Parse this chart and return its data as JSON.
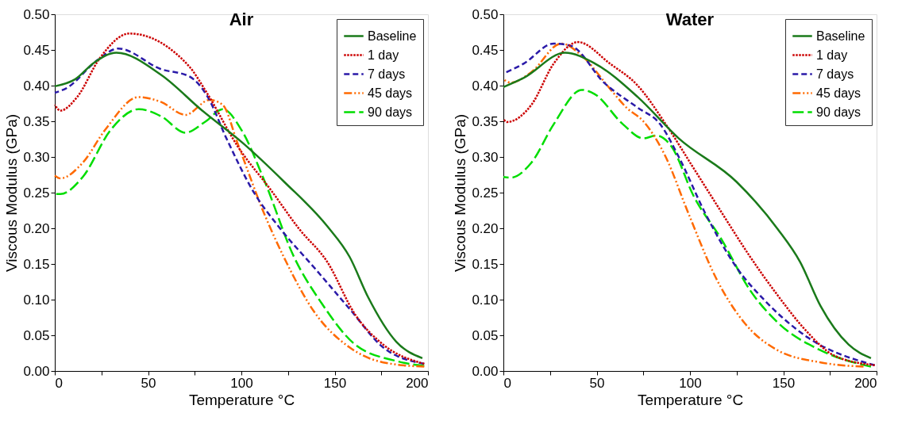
{
  "chart_data": [
    {
      "type": "line",
      "title": "Air",
      "xlabel": "Temperature °C",
      "ylabel": "Viscous Modulus (GPa)",
      "xlim": [
        0,
        200
      ],
      "ylim": [
        0,
        0.5
      ],
      "xticks": [
        0,
        {
          "value": 25,
          "label": null
        },
        50,
        {
          "value": 75,
          "label": null
        },
        100,
        {
          "value": 125,
          "label": null
        },
        150,
        {
          "value": 175,
          "label": null
        },
        200
      ],
      "yticks": [
        {
          "value": 0,
          "label": "0.00"
        },
        {
          "value": 0.05,
          "label": "0.05"
        },
        {
          "value": 0.1,
          "label": "0.10"
        },
        {
          "value": 0.15,
          "label": "0.15"
        },
        {
          "value": 0.2,
          "label": "0.20"
        },
        {
          "value": 0.25,
          "label": "0.25"
        },
        {
          "value": 0.3,
          "label": "0.30"
        },
        {
          "value": 0.35,
          "label": "0.35"
        },
        {
          "value": 0.4,
          "label": "0.40"
        },
        {
          "value": 0.45,
          "label": "0.45"
        },
        {
          "value": 0.5,
          "label": "0.50"
        }
      ],
      "grid": false,
      "legend": "top right",
      "marker": "none",
      "series": [
        {
          "name": "Baseline",
          "color": "#1a7a1a",
          "line_style": "solid",
          "x": [
            0,
            11,
            21,
            33,
            57,
            79,
            101,
            123,
            146,
            158,
            168,
            183,
            197
          ],
          "values": [
            0.399,
            0.409,
            0.432,
            0.446,
            0.415,
            0.365,
            0.319,
            0.265,
            0.203,
            0.16,
            0.103,
            0.041,
            0.018
          ]
        },
        {
          "name": "1 day",
          "color": "#cc0000",
          "line_style": "dotted",
          "x": [
            0,
            3,
            12,
            24,
            40,
            72,
            81,
            98,
            116,
            131,
            146,
            161,
            176,
            198
          ],
          "values": [
            0.373,
            0.365,
            0.384,
            0.438,
            0.473,
            0.427,
            0.392,
            0.315,
            0.253,
            0.199,
            0.153,
            0.079,
            0.037,
            0.01
          ]
        },
        {
          "name": "7 days",
          "color": "#2a1aa8",
          "line_style": "dashed",
          "x": [
            0,
            6,
            23,
            34,
            57,
            72,
            82,
            92,
            107,
            121,
            139,
            158,
            176,
            198
          ],
          "values": [
            0.39,
            0.396,
            0.436,
            0.452,
            0.423,
            0.413,
            0.384,
            0.326,
            0.249,
            0.199,
            0.145,
            0.087,
            0.033,
            0.01
          ]
        },
        {
          "name": "45 days",
          "color": "#ff6a00",
          "line_style": "dashdot",
          "x": [
            0,
            3,
            15,
            27,
            45,
            57,
            70,
            83,
            90,
            98,
            112,
            124,
            139,
            158,
            176,
            198
          ],
          "values": [
            0.274,
            0.27,
            0.292,
            0.338,
            0.384,
            0.377,
            0.359,
            0.38,
            0.373,
            0.319,
            0.222,
            0.153,
            0.083,
            0.033,
            0.012,
            0.006
          ]
        },
        {
          "name": "90 days",
          "color": "#00dd00",
          "line_style": "longdash",
          "x": [
            0,
            3,
            15,
            30,
            45,
            57,
            70,
            81,
            90,
            100,
            112,
            128,
            143,
            161,
            183,
            198
          ],
          "values": [
            0.248,
            0.248,
            0.272,
            0.338,
            0.367,
            0.357,
            0.334,
            0.35,
            0.367,
            0.338,
            0.269,
            0.161,
            0.095,
            0.037,
            0.014,
            0.007
          ]
        }
      ]
    },
    {
      "type": "line",
      "title": "Water",
      "xlabel": "Temperature °C",
      "ylabel": "Viscous Modulus (GPa)",
      "xlim": [
        0,
        200
      ],
      "ylim": [
        0,
        0.5
      ],
      "xticks": [
        0,
        {
          "value": 25,
          "label": null
        },
        50,
        {
          "value": 75,
          "label": null
        },
        100,
        {
          "value": 125,
          "label": null
        },
        150,
        {
          "value": 175,
          "label": null
        },
        200
      ],
      "yticks": [
        {
          "value": 0,
          "label": "0.00"
        },
        {
          "value": 0.05,
          "label": "0.05"
        },
        {
          "value": 0.1,
          "label": "0.10"
        },
        {
          "value": 0.15,
          "label": "0.15"
        },
        {
          "value": 0.2,
          "label": "0.20"
        },
        {
          "value": 0.25,
          "label": "0.25"
        },
        {
          "value": 0.3,
          "label": "0.30"
        },
        {
          "value": 0.35,
          "label": "0.35"
        },
        {
          "value": 0.4,
          "label": "0.40"
        },
        {
          "value": 0.45,
          "label": "0.45"
        },
        {
          "value": 0.5,
          "label": "0.50"
        }
      ],
      "grid": false,
      "legend": "top right",
      "marker": "none",
      "series": [
        {
          "name": "Baseline",
          "color": "#1a7a1a",
          "line_style": "solid",
          "x": [
            0,
            11,
            33,
            49,
            72,
            94,
            125,
            147,
            159,
            170,
            185,
            197
          ],
          "values": [
            0.398,
            0.411,
            0.446,
            0.431,
            0.384,
            0.326,
            0.265,
            0.199,
            0.153,
            0.091,
            0.037,
            0.018
          ]
        },
        {
          "name": "1 day",
          "color": "#cc0000",
          "line_style": "dotted",
          "x": [
            0,
            2,
            15,
            27,
            40,
            57,
            72,
            87,
            102,
            117,
            132,
            147,
            162,
            177,
            199
          ],
          "values": [
            0.353,
            0.349,
            0.373,
            0.431,
            0.461,
            0.431,
            0.4,
            0.346,
            0.284,
            0.222,
            0.161,
            0.106,
            0.057,
            0.022,
            0.008
          ]
        },
        {
          "name": "7 days",
          "color": "#2a1aa8",
          "line_style": "dashed",
          "x": [
            0,
            11,
            27,
            36,
            54,
            72,
            84,
            94,
            108,
            125,
            140,
            162,
            199
          ],
          "values": [
            0.417,
            0.431,
            0.459,
            0.456,
            0.404,
            0.369,
            0.346,
            0.3,
            0.222,
            0.145,
            0.099,
            0.049,
            0.008
          ]
        },
        {
          "name": "45 days",
          "color": "#ff6a00",
          "line_style": "dashdot",
          "x": [
            0,
            4,
            15,
            31,
            42,
            57,
            66,
            75,
            87,
            99,
            114,
            129,
            147,
            170,
            193
          ],
          "values": [
            0.409,
            0.404,
            0.419,
            0.459,
            0.442,
            0.396,
            0.369,
            0.35,
            0.3,
            0.222,
            0.13,
            0.068,
            0.029,
            0.012,
            0.006
          ]
        },
        {
          "name": "90 days",
          "color": "#00dd00",
          "line_style": "longdash",
          "x": [
            0,
            4,
            15,
            27,
            42,
            49,
            64,
            75,
            82,
            90,
            102,
            117,
            132,
            147,
            170,
            197
          ],
          "values": [
            0.272,
            0.271,
            0.292,
            0.346,
            0.394,
            0.388,
            0.346,
            0.326,
            0.33,
            0.315,
            0.245,
            0.184,
            0.114,
            0.068,
            0.029,
            0.006
          ]
        }
      ]
    }
  ]
}
